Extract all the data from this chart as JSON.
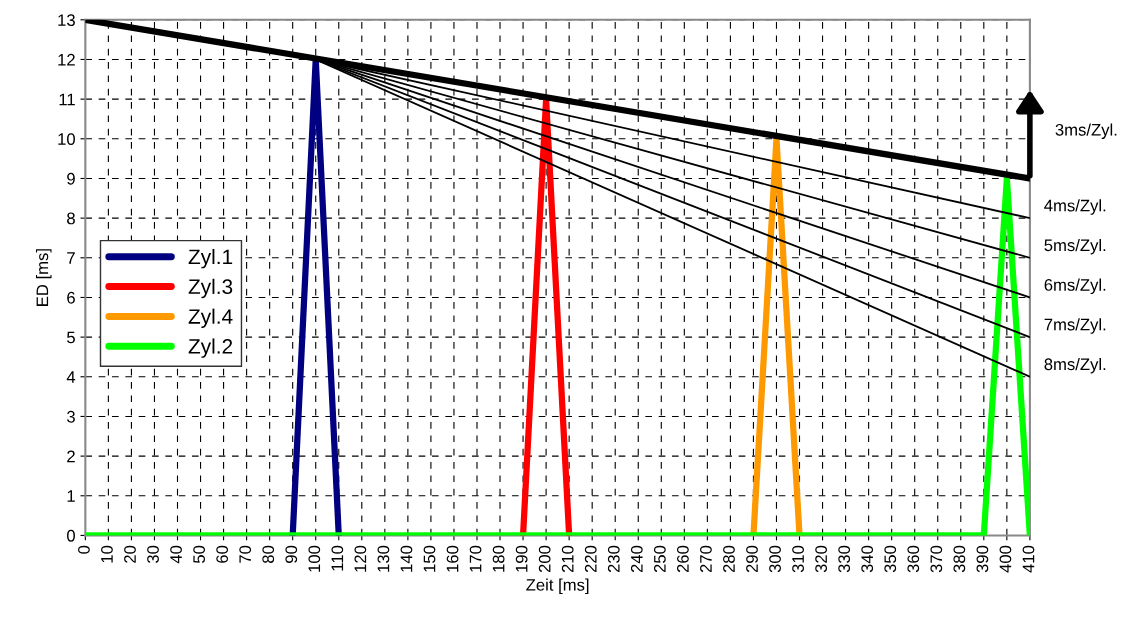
{
  "chart_data": {
    "type": "line",
    "xlabel": "Zeit [ms]",
    "ylabel": "ED [ms]",
    "categories": [
      "0",
      "10",
      "20",
      "30",
      "40",
      "50",
      "60",
      "70",
      "80",
      "90",
      "100",
      "110",
      "120",
      "130",
      "140",
      "150",
      "160",
      "170",
      "180",
      "190",
      "200",
      "210",
      "220",
      "230",
      "240",
      "250",
      "260",
      "270",
      "280",
      "290",
      "300",
      "310",
      "320",
      "330",
      "340",
      "350",
      "360",
      "370",
      "380",
      "390",
      "400",
      "410"
    ],
    "ylim": [
      0,
      13
    ],
    "yticks": [
      0,
      1,
      2,
      3,
      4,
      5,
      6,
      7,
      8,
      9,
      10,
      11,
      12,
      13
    ],
    "grid": true,
    "legend": "left",
    "series": [
      {
        "name": "Zyl.1",
        "color": "#000080",
        "values": [
          null,
          null,
          null,
          null,
          null,
          null,
          null,
          null,
          null,
          0,
          12,
          0,
          null,
          null,
          null,
          null,
          null,
          null,
          null,
          null,
          null,
          null,
          null,
          null,
          null,
          null,
          null,
          null,
          null,
          null,
          null,
          null,
          null,
          null,
          null,
          null,
          null,
          null,
          null,
          null,
          null,
          null
        ]
      },
      {
        "name": "Zyl.3",
        "color": "#ff0000",
        "values": [
          null,
          null,
          null,
          null,
          null,
          null,
          null,
          null,
          null,
          null,
          null,
          null,
          null,
          null,
          null,
          null,
          null,
          null,
          null,
          0,
          11,
          0,
          null,
          null,
          null,
          null,
          null,
          null,
          null,
          null,
          null,
          null,
          null,
          null,
          null,
          null,
          null,
          null,
          null,
          null,
          null,
          null
        ]
      },
      {
        "name": "Zyl.4",
        "color": "#ff9900",
        "values": [
          null,
          null,
          null,
          null,
          null,
          null,
          null,
          null,
          null,
          null,
          null,
          null,
          null,
          null,
          null,
          null,
          null,
          null,
          null,
          null,
          null,
          null,
          null,
          null,
          null,
          null,
          null,
          null,
          null,
          0,
          10,
          0,
          null,
          null,
          null,
          null,
          null,
          null,
          null,
          null,
          null,
          null
        ]
      },
      {
        "name": "Zyl.2",
        "color": "#00ff00",
        "values": [
          0,
          0,
          0,
          0,
          0,
          0,
          0,
          0,
          0,
          0,
          0,
          0,
          0,
          0,
          0,
          0,
          0,
          0,
          0,
          0,
          0,
          0,
          0,
          0,
          0,
          0,
          0,
          0,
          0,
          0,
          0,
          0,
          0,
          0,
          0,
          0,
          0,
          0,
          0,
          0,
          9,
          0
        ]
      },
      {
        "color": "#000000",
        "values": [
          13,
          null,
          null,
          null,
          null,
          null,
          null,
          null,
          null,
          null,
          null,
          null,
          null,
          null,
          null,
          null,
          null,
          null,
          null,
          null,
          null,
          null,
          null,
          null,
          null,
          null,
          null,
          null,
          null,
          null,
          null,
          null,
          null,
          null,
          null,
          null,
          null,
          null,
          null,
          null,
          null,
          9
        ]
      },
      {
        "color": "#000000",
        "values": [
          null,
          null,
          null,
          null,
          null,
          null,
          null,
          null,
          null,
          null,
          12,
          null,
          null,
          null,
          null,
          null,
          null,
          null,
          null,
          null,
          null,
          null,
          null,
          null,
          null,
          null,
          null,
          null,
          null,
          null,
          null,
          null,
          null,
          null,
          null,
          null,
          null,
          null,
          null,
          null,
          null,
          8
        ]
      },
      {
        "color": "#000000",
        "values": [
          null,
          null,
          null,
          null,
          null,
          null,
          null,
          null,
          null,
          null,
          12,
          null,
          null,
          null,
          null,
          null,
          null,
          null,
          null,
          null,
          null,
          null,
          null,
          null,
          null,
          null,
          null,
          null,
          null,
          null,
          null,
          null,
          null,
          null,
          null,
          null,
          null,
          null,
          null,
          null,
          null,
          7
        ]
      },
      {
        "color": "#000000",
        "values": [
          null,
          null,
          null,
          null,
          null,
          null,
          null,
          null,
          null,
          null,
          12,
          null,
          null,
          null,
          null,
          null,
          null,
          null,
          null,
          null,
          null,
          null,
          null,
          null,
          null,
          null,
          null,
          null,
          null,
          null,
          null,
          null,
          null,
          null,
          null,
          null,
          null,
          null,
          null,
          null,
          null,
          6
        ]
      },
      {
        "color": "#000000",
        "values": [
          null,
          null,
          null,
          null,
          null,
          null,
          null,
          null,
          null,
          null,
          12,
          null,
          null,
          null,
          null,
          null,
          null,
          null,
          null,
          null,
          null,
          null,
          null,
          null,
          null,
          null,
          null,
          null,
          null,
          null,
          null,
          null,
          null,
          null,
          null,
          null,
          null,
          null,
          null,
          null,
          null,
          5
        ]
      },
      {
        "color": "#000000",
        "values": [
          null,
          null,
          null,
          null,
          null,
          null,
          null,
          null,
          null,
          null,
          12,
          null,
          null,
          null,
          null,
          null,
          null,
          null,
          null,
          null,
          null,
          null,
          null,
          null,
          null,
          null,
          null,
          null,
          null,
          null,
          null,
          null,
          null,
          null,
          null,
          null,
          null,
          null,
          null,
          null,
          null,
          4
        ]
      }
    ],
    "annotations": [
      {
        "text": "3ms/Zyl.",
        "x": "410",
        "y": 9
      },
      {
        "text": "4ms/Zyl.",
        "x": "410",
        "y": 8
      },
      {
        "text": "5ms/Zyl.",
        "x": "410",
        "y": 7
      },
      {
        "text": "6ms/Zyl.",
        "x": "410",
        "y": 6
      },
      {
        "text": "7ms/Zyl.",
        "x": "410",
        "y": 5
      },
      {
        "text": "8ms/Zyl.",
        "x": "410",
        "y": 4
      }
    ]
  }
}
